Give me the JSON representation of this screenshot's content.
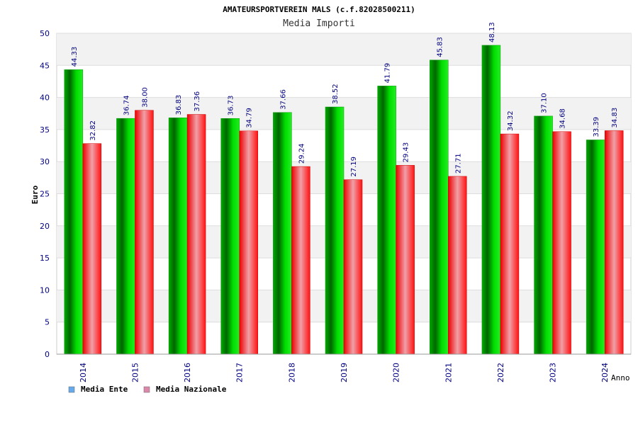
{
  "chart_data": {
    "type": "bar",
    "title": "AMATEURSPORTVEREIN MALS (c.f.82028500211)",
    "subtitle": "Media Importi",
    "ylabel": "Euro",
    "xlabel": "Anno",
    "ylim": [
      0,
      50
    ],
    "yticks": [
      "0",
      "5",
      "10",
      "15",
      "20",
      "25",
      "30",
      "35",
      "40",
      "45",
      "50"
    ],
    "grid": true,
    "legend_position": "bottom-left",
    "categories": [
      "2014",
      "2015",
      "2016",
      "2017",
      "2018",
      "2019",
      "2020",
      "2021",
      "2022",
      "2023",
      "2024"
    ],
    "series": [
      {
        "name": "Media Ente",
        "color": "#00cc00",
        "legend_color": "#66aaee",
        "values": [
          44.33,
          36.74,
          36.83,
          36.73,
          37.66,
          38.52,
          41.79,
          45.83,
          48.13,
          37.1,
          33.39
        ],
        "labels": [
          "44.33",
          "36.74",
          "36.83",
          "36.73",
          "37.66",
          "38.52",
          "41.79",
          "45.83",
          "48.13",
          "37.10",
          "33.39"
        ]
      },
      {
        "name": "Media Nazionale",
        "color": "#ee0000",
        "legend_color": "#dd88aa",
        "values": [
          32.82,
          38.0,
          37.36,
          34.79,
          29.24,
          27.19,
          29.43,
          27.71,
          34.32,
          34.68,
          34.83
        ],
        "labels": [
          "32.82",
          "38.00",
          "37.36",
          "34.79",
          "29.24",
          "27.19",
          "29.43",
          "27.71",
          "34.32",
          "34.68",
          "34.83"
        ]
      }
    ]
  }
}
